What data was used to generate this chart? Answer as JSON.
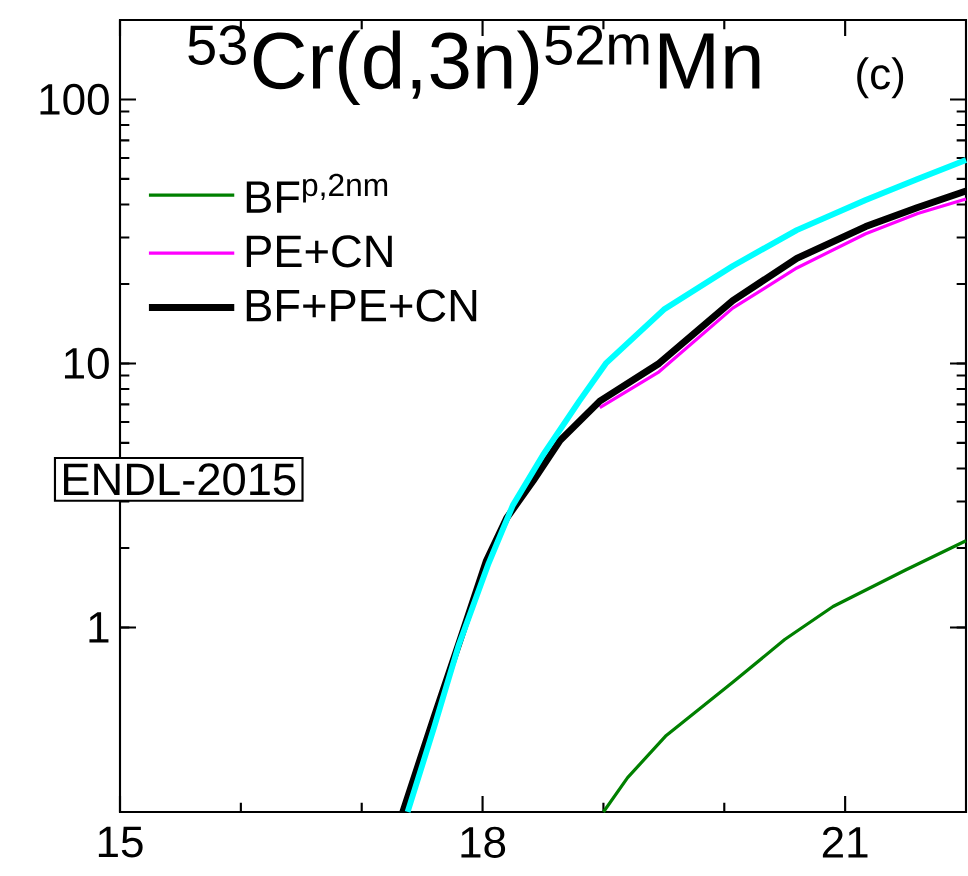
{
  "chart_data": {
    "type": "line",
    "title": "$^{53}$Cr(d,3n)$^{52m}$Mn",
    "annotations": [
      "(c)",
      "ENDL-2015"
    ],
    "xlim": [
      15,
      22
    ],
    "xticks": [
      15,
      18,
      21
    ],
    "ylim": [
      0.2,
      200
    ],
    "yticks": [
      1,
      10,
      100
    ],
    "log": "y",
    "legend": "top left",
    "line_style": "solid",
    "series": [
      {
        "name": "BF$^{p,2nm}$",
        "color": "#008000",
        "x": [
          19.0,
          19.2,
          19.52,
          20.07,
          20.5,
          20.9,
          21.5,
          22
        ],
        "values": [
          0.2,
          0.27,
          0.39,
          0.62,
          0.9,
          1.2,
          1.65,
          2.13
        ]
      },
      {
        "name": "PE+CN",
        "color": "#ff00ff",
        "x": [
          18.97,
          19.46,
          20.07,
          20.6,
          21.17,
          21.6,
          22
        ],
        "values": [
          6.8,
          9.3,
          16.2,
          23,
          31,
          37,
          42
        ]
      },
      {
        "name": "BF+PE+CN",
        "color": "#000000",
        "x": [
          17.34,
          17.6,
          17.81,
          18.03,
          18.2,
          18.42,
          18.64,
          18.97,
          19.46,
          20.07,
          20.6,
          21.17,
          21.6,
          22
        ],
        "values": [
          0.2,
          0.46,
          0.885,
          1.78,
          2.6,
          3.6,
          5.1,
          7.2,
          10,
          17.3,
          25,
          33,
          39,
          45
        ]
      },
      {
        "color": "#00ffff",
        "x": [
          17.38,
          17.6,
          17.8,
          18.05,
          18.25,
          18.5,
          18.8,
          19.02,
          19.5,
          20.07,
          20.6,
          21.17,
          21.6,
          22
        ],
        "values": [
          0.2,
          0.42,
          0.85,
          1.75,
          2.9,
          4.5,
          7.2,
          10,
          16,
          23.4,
          32,
          41.6,
          50,
          59
        ]
      }
    ]
  }
}
